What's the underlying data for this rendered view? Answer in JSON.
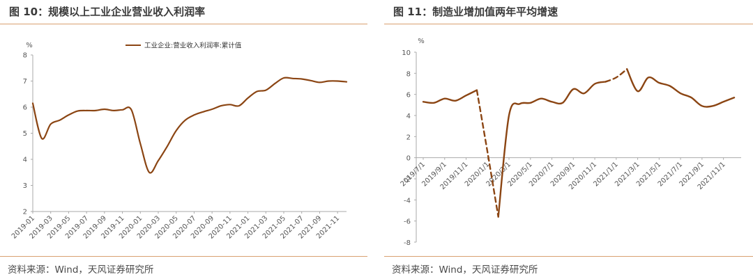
{
  "chart_data": [
    {
      "type": "line",
      "title": "图 10：规模以上工业企业营业收入利润率",
      "source": "资料来源：Wind，天风证券研究所",
      "unit": "%",
      "ylim": [
        2,
        8
      ],
      "yticks": [
        "2",
        "3",
        "4",
        "5",
        "6",
        "7",
        "8"
      ],
      "x_labels": [
        "2019-01",
        "2019-03",
        "2019-05",
        "2019-07",
        "2019-09",
        "2019-11",
        "2020-01",
        "2020-03",
        "2020-05",
        "2020-07",
        "2020-09",
        "2020-11",
        "2021-01",
        "2021-03",
        "2021-05",
        "2021-07",
        "2021-09",
        "2021-11"
      ],
      "legend_position": "top",
      "grid": false,
      "color": "#8b4513",
      "series": [
        {
          "name": "工业企业:营业收入利润率:累计值",
          "x": [
            "2019-01",
            "2019-02",
            "2019-03",
            "2019-04",
            "2019-05",
            "2019-06",
            "2019-07",
            "2019-08",
            "2019-09",
            "2019-10",
            "2019-11",
            "2019-12",
            "2020-01",
            "2020-02",
            "2020-03",
            "2020-04",
            "2020-05",
            "2020-06",
            "2020-07",
            "2020-08",
            "2020-09",
            "2020-10",
            "2020-11",
            "2020-12",
            "2021-01",
            "2021-02",
            "2021-03",
            "2021-04",
            "2021-05",
            "2021-06",
            "2021-07",
            "2021-08",
            "2021-09",
            "2021-10",
            "2021-11",
            "2021-12"
          ],
          "values": [
            6.15,
            4.8,
            5.35,
            5.5,
            5.7,
            5.85,
            5.87,
            5.87,
            5.92,
            5.87,
            5.9,
            5.9,
            4.6,
            3.5,
            3.95,
            4.5,
            5.1,
            5.5,
            5.7,
            5.82,
            5.92,
            6.05,
            6.1,
            6.05,
            6.35,
            6.6,
            6.65,
            6.9,
            7.12,
            7.1,
            7.08,
            7.02,
            6.95,
            7.0,
            7.0,
            6.97
          ]
        }
      ]
    },
    {
      "type": "line",
      "title": "图 11：制造业增加值两年平均增速",
      "source": "资料来源：Wind，天风证券研究所",
      "unit": "%",
      "ylim": [
        -8,
        10
      ],
      "yticks": [
        "-8",
        "-6",
        "-4",
        "-2",
        "0",
        "2",
        "4",
        "6",
        "8",
        "10"
      ],
      "x_labels": [
        "2019/7/1",
        "2019/9/1",
        "2019/11/1",
        "2020/1/1",
        "2020/3/1",
        "2020/5/1",
        "2020/7/1",
        "2020/9/1",
        "2020/11/1",
        "2021/1/1",
        "2021/3/1",
        "2021/5/1",
        "2021/7/1",
        "2021/9/1",
        "2021/11/1"
      ],
      "grid": false,
      "color": "#8b4513",
      "series": [
        {
          "x": [
            "2019/7/1",
            "2019/8/1",
            "2019/9/1",
            "2019/10/1",
            "2019/11/1",
            "2019/12/1",
            "2020/1/1",
            "2020/2/1",
            "2020/3/1",
            "2020/4/1",
            "2020/5/1",
            "2020/6/1",
            "2020/7/1",
            "2020/8/1",
            "2020/9/1",
            "2020/10/1",
            "2020/11/1",
            "2020/12/1",
            "2021/1/1",
            "2021/2/1",
            "2021/3/1",
            "2021/4/1",
            "2021/5/1",
            "2021/6/1",
            "2021/7/1",
            "2021/8/1",
            "2021/9/1",
            "2021/10/1",
            "2021/11/1",
            "2021/12/1"
          ],
          "values": [
            5.3,
            5.2,
            5.6,
            5.4,
            5.9,
            6.4,
            0.5,
            -5.6,
            4.0,
            5.1,
            5.2,
            5.6,
            5.3,
            5.2,
            6.5,
            6.1,
            7.0,
            7.2,
            7.6,
            8.4,
            6.3,
            7.6,
            7.1,
            6.8,
            6.1,
            5.7,
            4.9,
            4.9,
            5.3,
            5.7
          ],
          "dashed_segments": [
            [
              5,
              7
            ],
            [
              17,
              19
            ]
          ]
        }
      ]
    }
  ]
}
